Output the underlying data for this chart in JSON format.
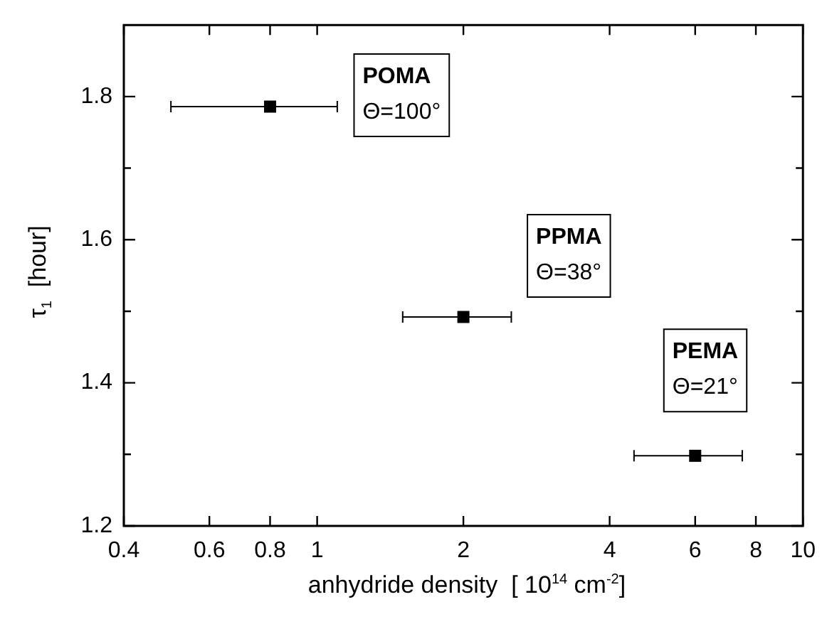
{
  "chart_data": {
    "type": "scatter",
    "xlabel": "anhydride density  [ 10$^{14}$ cm$^{-2}$]",
    "ylabel": "τ$_{1}$  [hour]",
    "log": "x",
    "xlim": [
      0.4,
      10
    ],
    "xticks": [
      0.4,
      0.6,
      0.8,
      1,
      2,
      4,
      6,
      8,
      10
    ],
    "ylim": [
      1.2,
      1.9
    ],
    "yticks": [
      1.2,
      {
        "value": 1.3,
        "label": null
      },
      1.4,
      {
        "value": 1.5,
        "label": null
      },
      1.6,
      {
        "value": 1.7,
        "label": null
      },
      1.8
    ],
    "grid": false,
    "legend": false,
    "marker": "square",
    "series": [
      {
        "color": "#000000",
        "x": [
          0.8,
          2,
          6
        ],
        "values": [
          1.786,
          1.492,
          1.298
        ],
        "xerrors": [
          [
            0.5,
            1.1
          ],
          [
            1.5,
            2.51
          ],
          [
            4.49,
            7.5
          ]
        ]
      }
    ],
    "annotations": [
      "POMA\nΘ=100°",
      "PPMA\nΘ=38°",
      "PEMA\nΘ=21°"
    ]
  }
}
